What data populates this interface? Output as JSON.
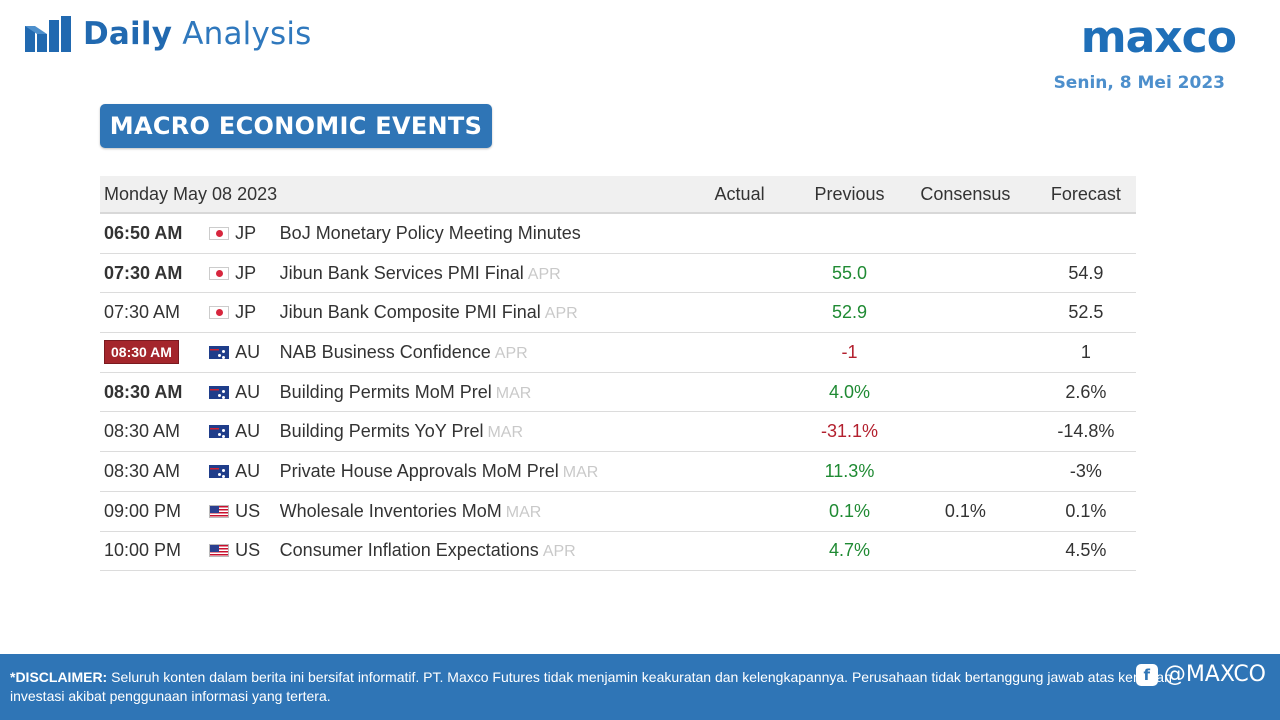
{
  "header": {
    "brand_bold": "Daily",
    "brand_light": "Analysis",
    "logo": "maxco",
    "date": "Senin, 8 Mei 2023"
  },
  "section_title": "MACRO ECONOMIC EVENTS",
  "table": {
    "date_header": "Monday May 08 2023",
    "columns": [
      "Actual",
      "Previous",
      "Consensus",
      "Forecast"
    ],
    "rows": [
      {
        "time": "06:50 AM",
        "time_style": "bold",
        "flag": "jp",
        "country": "JP",
        "event": "BoJ Monetary Policy Meeting Minutes",
        "period": "",
        "actual": "",
        "previous": "",
        "previous_tone": "",
        "consensus": "",
        "forecast": ""
      },
      {
        "time": "07:30 AM",
        "time_style": "bold",
        "flag": "jp",
        "country": "JP",
        "event": "Jibun Bank Services PMI Final",
        "period": "APR",
        "actual": "",
        "previous": "55.0",
        "previous_tone": "pos",
        "consensus": "",
        "forecast": "54.9"
      },
      {
        "time": "07:30 AM",
        "time_style": "normal",
        "flag": "jp",
        "country": "JP",
        "event": "Jibun Bank Composite PMI Final",
        "period": "APR",
        "actual": "",
        "previous": "52.9",
        "previous_tone": "pos",
        "consensus": "",
        "forecast": "52.5"
      },
      {
        "time": "08:30 AM",
        "time_style": "highlight",
        "flag": "au",
        "country": "AU",
        "event": "NAB Business Confidence",
        "period": "APR",
        "actual": "",
        "previous": "-1",
        "previous_tone": "neg",
        "consensus": "",
        "forecast": "1"
      },
      {
        "time": "08:30 AM",
        "time_style": "bold",
        "flag": "au",
        "country": "AU",
        "event": "Building Permits MoM Prel",
        "period": "MAR",
        "actual": "",
        "previous": "4.0%",
        "previous_tone": "pos",
        "consensus": "",
        "forecast": "2.6%"
      },
      {
        "time": "08:30 AM",
        "time_style": "normal",
        "flag": "au",
        "country": "AU",
        "event": "Building Permits YoY Prel",
        "period": "MAR",
        "actual": "",
        "previous": "-31.1%",
        "previous_tone": "neg",
        "consensus": "",
        "forecast": "-14.8%"
      },
      {
        "time": "08:30 AM",
        "time_style": "normal",
        "flag": "au",
        "country": "AU",
        "event": "Private House Approvals MoM Prel",
        "period": "MAR",
        "actual": "",
        "previous": "11.3%",
        "previous_tone": "pos",
        "consensus": "",
        "forecast": "-3%"
      },
      {
        "time": "09:00 PM",
        "time_style": "normal",
        "flag": "us",
        "country": "US",
        "event": "Wholesale Inventories MoM",
        "period": "MAR",
        "actual": "",
        "previous": "0.1%",
        "previous_tone": "pos",
        "consensus": "0.1%",
        "forecast": "0.1%"
      },
      {
        "time": "10:00 PM",
        "time_style": "normal",
        "flag": "us",
        "country": "US",
        "event": "Consumer Inflation Expectations",
        "period": "APR",
        "actual": "",
        "previous": "4.7%",
        "previous_tone": "pos",
        "consensus": "",
        "forecast": "4.5%"
      }
    ]
  },
  "footer": {
    "disclaimer_label": "*DISCLAIMER:",
    "disclaimer_text": " Seluruh konten dalam berita ini bersifat informatif. PT. Maxco Futures tidak menjamin keakuratan dan kelengkapannya. Perusahaan tidak bertanggung jawab atas kerugian investasi akibat penggunaan informasi yang tertera.",
    "social_handle": "@MAXCO",
    "social_icon": "facebook-icon"
  },
  "colors": {
    "brand_blue": "#2f75b6",
    "positive": "#1f8a33",
    "negative": "#b3202e",
    "highlight_time": "#a4262c"
  }
}
